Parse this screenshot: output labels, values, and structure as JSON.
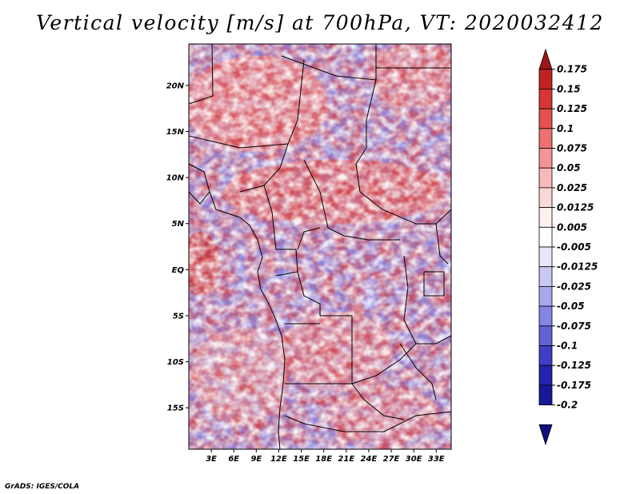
{
  "title": "Vertical velocity [m/s] at 700hPa, VT: 2020032412",
  "footer": "GrADS: IGES/COLA",
  "map": {
    "lat_labels": [
      "20N",
      "15N",
      "10N",
      "5N",
      "EQ",
      "5S",
      "10S",
      "15S"
    ],
    "lon_labels": [
      "3E",
      "6E",
      "9E",
      "12E",
      "15E",
      "18E",
      "21E",
      "24E",
      "27E",
      "30E",
      "33E"
    ],
    "lat_range": [
      -19.5,
      24.5
    ],
    "lon_range": [
      0,
      35
    ],
    "field": "vertical velocity (omega)",
    "units": "m/s",
    "pressure_level": "700hPa",
    "valid_time": "2020032412"
  },
  "colorbar": {
    "levels": [
      "0.175",
      "0.15",
      "0.125",
      "0.1",
      "0.075",
      "0.05",
      "0.025",
      "0.0125",
      "0.005",
      "-0.005",
      "-0.0125",
      "-0.025",
      "-0.05",
      "-0.075",
      "-0.1",
      "-0.125",
      "-0.175",
      "-0.2"
    ],
    "colors": [
      "#a01515",
      "#c02222",
      "#d83535",
      "#e55050",
      "#ee7070",
      "#f39595",
      "#f8b9b9",
      "#fcd8d8",
      "#fff0f0",
      "#ffffff",
      "#e6e6fb",
      "#c8c8f3",
      "#a8a8ee",
      "#8585e3",
      "#6262d6",
      "#3f3fc6",
      "#2424ad",
      "#18189a",
      "#0e0e80"
    ]
  }
}
